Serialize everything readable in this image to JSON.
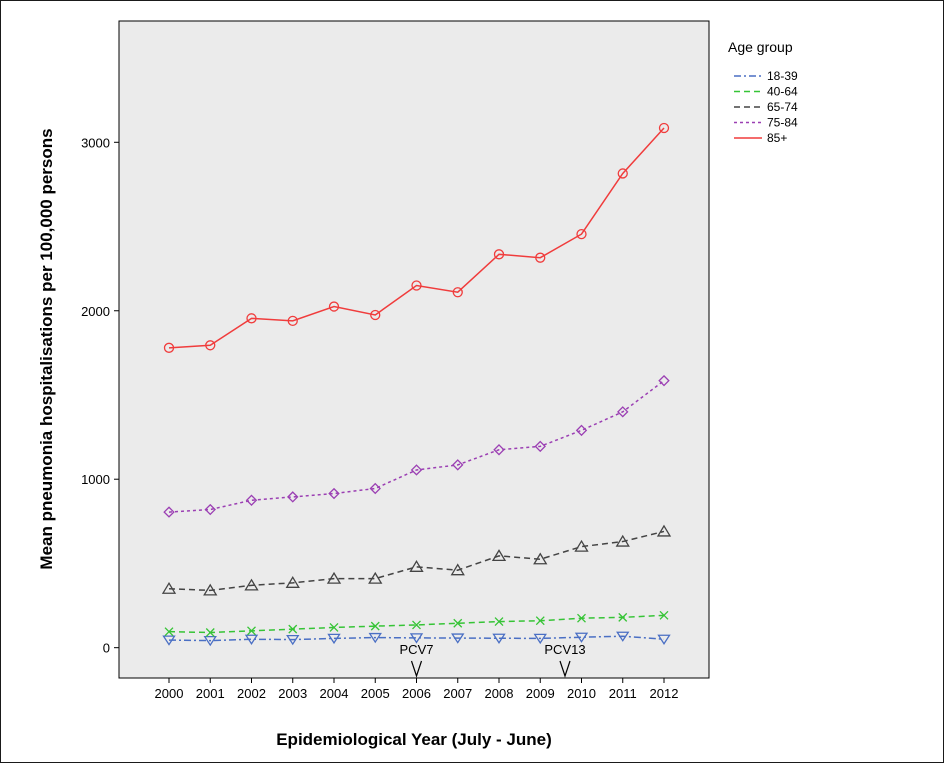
{
  "chart_data": {
    "type": "line",
    "title": "",
    "xlabel": "Epidemiological Year (July - June)",
    "ylabel": "Mean pneumonia hospitalisations per 100,000 persons",
    "categories": [
      "2000",
      "2001",
      "2002",
      "2003",
      "2004",
      "2005",
      "2006",
      "2007",
      "2008",
      "2009",
      "2010",
      "2011",
      "2012"
    ],
    "ylim": [
      -180,
      3720
    ],
    "yticks": [
      0,
      1000,
      2000,
      3000
    ],
    "grid": false,
    "legend_title": "Age group",
    "legend_position": "right",
    "series": [
      {
        "name": "18-39",
        "color": "#4a6fc4",
        "dash": "dashdot",
        "marker": "triangle-down",
        "values": [
          45,
          42,
          50,
          48,
          55,
          60,
          58,
          57,
          56,
          55,
          62,
          68,
          50
        ]
      },
      {
        "name": "40-64",
        "color": "#36c436",
        "dash": "dashed",
        "marker": "x",
        "values": [
          95,
          90,
          100,
          110,
          120,
          128,
          135,
          145,
          155,
          160,
          175,
          180,
          192
        ]
      },
      {
        "name": "65-74",
        "color": "#444444",
        "dash": "dashed",
        "marker": "triangle-up",
        "values": [
          350,
          340,
          370,
          385,
          410,
          410,
          480,
          460,
          545,
          525,
          600,
          630,
          690
        ]
      },
      {
        "name": "75-84",
        "color": "#9b3fb3",
        "dash": "dotted",
        "marker": "diamond",
        "values": [
          805,
          820,
          875,
          895,
          915,
          945,
          1055,
          1085,
          1175,
          1195,
          1290,
          1400,
          1585
        ]
      },
      {
        "name": "85+",
        "color": "#f03c3c",
        "dash": "solid",
        "marker": "circle",
        "values": [
          1780,
          1795,
          1955,
          1940,
          2025,
          1975,
          2150,
          2110,
          2335,
          2315,
          2455,
          2815,
          3085
        ]
      }
    ],
    "annotations": [
      {
        "text": "PCV7",
        "x": 2006,
        "symbol": "V"
      },
      {
        "text": "PCV13",
        "x": 2009.6,
        "symbol": "V"
      }
    ]
  }
}
